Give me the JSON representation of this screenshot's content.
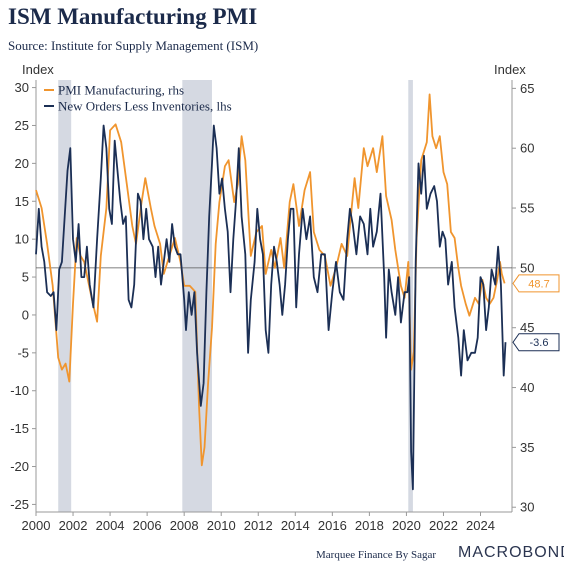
{
  "title": "ISM Manufacturing PMI",
  "subtitle": "Source: Institute for Supply Management (ISM)",
  "footer": {
    "credit": "Marquee Finance By Sagar",
    "brand": "MACROBOND"
  },
  "chart_data": {
    "type": "line",
    "left_axis": {
      "unit": "Index",
      "range": [
        -26,
        31
      ],
      "ticks": [
        "30",
        "25",
        "20",
        "15",
        "10",
        "5",
        "0",
        "-5",
        "-10",
        "-15",
        "-20",
        "-25"
      ]
    },
    "right_axis": {
      "unit": "Index",
      "range": [
        29.6,
        65.7
      ],
      "ticks": [
        "65",
        "60",
        "55",
        "50",
        "45",
        "40",
        "35",
        "30"
      ]
    },
    "x_axis": {
      "range": [
        2000,
        2025.7
      ],
      "ticks": [
        "2000",
        "2002",
        "2004",
        "2006",
        "2008",
        "2010",
        "2012",
        "2014",
        "2016",
        "2018",
        "2020",
        "2022",
        "2024"
      ]
    },
    "recessions": [
      [
        2001.2,
        2001.9
      ],
      [
        2007.9,
        2009.5
      ],
      [
        2020.1,
        2020.35
      ]
    ],
    "reference_line": {
      "axis": "right",
      "value": 50
    },
    "grid": false,
    "legend_placement": "top-left",
    "series": [
      {
        "name": "PMI Manufacturing, rhs",
        "axis": "right",
        "color": "#f0952e",
        "points": [
          [
            2000.0,
            56.5
          ],
          [
            2000.3,
            55
          ],
          [
            2000.6,
            52
          ],
          [
            2000.9,
            48.5
          ],
          [
            2001.2,
            42.5
          ],
          [
            2001.4,
            41.5
          ],
          [
            2001.6,
            42
          ],
          [
            2001.8,
            40.5
          ],
          [
            2002.0,
            47
          ],
          [
            2002.2,
            52.5
          ],
          [
            2002.4,
            51
          ],
          [
            2002.6,
            50.5
          ],
          [
            2002.8,
            49
          ],
          [
            2003.0,
            47.5
          ],
          [
            2003.3,
            45.5
          ],
          [
            2003.5,
            51
          ],
          [
            2003.8,
            55
          ],
          [
            2004.0,
            61.5
          ],
          [
            2004.3,
            62
          ],
          [
            2004.6,
            60.5
          ],
          [
            2004.9,
            57
          ],
          [
            2005.2,
            53.5
          ],
          [
            2005.4,
            52
          ],
          [
            2005.7,
            55.5
          ],
          [
            2005.9,
            57.5
          ],
          [
            2006.2,
            55
          ],
          [
            2006.4,
            53.5
          ],
          [
            2006.7,
            52
          ],
          [
            2006.9,
            49.5
          ],
          [
            2007.2,
            51
          ],
          [
            2007.5,
            52.5
          ],
          [
            2007.8,
            50.5
          ],
          [
            2008.0,
            48.5
          ],
          [
            2008.3,
            48.5
          ],
          [
            2008.6,
            48
          ],
          [
            2008.8,
            38.5
          ],
          [
            2008.95,
            33.5
          ],
          [
            2009.1,
            35
          ],
          [
            2009.3,
            40.5
          ],
          [
            2009.5,
            45
          ],
          [
            2009.7,
            52
          ],
          [
            2009.9,
            55.5
          ],
          [
            2010.2,
            58.5
          ],
          [
            2010.4,
            59
          ],
          [
            2010.7,
            55.5
          ],
          [
            2010.9,
            57
          ],
          [
            2011.1,
            61
          ],
          [
            2011.3,
            59
          ],
          [
            2011.6,
            51
          ],
          [
            2011.9,
            53
          ],
          [
            2012.2,
            53.5
          ],
          [
            2012.4,
            49.5
          ],
          [
            2012.7,
            51.5
          ],
          [
            2012.9,
            50
          ],
          [
            2013.2,
            52.5
          ],
          [
            2013.4,
            50
          ],
          [
            2013.7,
            55.5
          ],
          [
            2013.9,
            57
          ],
          [
            2014.2,
            53.5
          ],
          [
            2014.5,
            56.5
          ],
          [
            2014.8,
            58
          ],
          [
            2015.0,
            53
          ],
          [
            2015.3,
            51.5
          ],
          [
            2015.6,
            51
          ],
          [
            2015.9,
            48.5
          ],
          [
            2016.2,
            50
          ],
          [
            2016.5,
            52
          ],
          [
            2016.8,
            51
          ],
          [
            2016.95,
            53.5
          ],
          [
            2017.2,
            57.5
          ],
          [
            2017.4,
            55
          ],
          [
            2017.7,
            60
          ],
          [
            2017.9,
            58.5
          ],
          [
            2018.2,
            60
          ],
          [
            2018.4,
            58
          ],
          [
            2018.7,
            61
          ],
          [
            2018.9,
            56
          ],
          [
            2019.2,
            54
          ],
          [
            2019.4,
            51.5
          ],
          [
            2019.7,
            48.5
          ],
          [
            2019.9,
            47.5
          ],
          [
            2020.1,
            50.5
          ],
          [
            2020.25,
            41.5
          ],
          [
            2020.4,
            43
          ],
          [
            2020.55,
            52.5
          ],
          [
            2020.8,
            59
          ],
          [
            2021.1,
            60.5
          ],
          [
            2021.25,
            64.5
          ],
          [
            2021.4,
            61
          ],
          [
            2021.6,
            60
          ],
          [
            2021.8,
            61
          ],
          [
            2022.0,
            58
          ],
          [
            2022.2,
            57
          ],
          [
            2022.4,
            53
          ],
          [
            2022.6,
            52.5
          ],
          [
            2022.8,
            50
          ],
          [
            2022.95,
            48.5
          ],
          [
            2023.2,
            47
          ],
          [
            2023.4,
            46
          ],
          [
            2023.7,
            47.5
          ],
          [
            2023.9,
            47
          ],
          [
            2024.1,
            49
          ],
          [
            2024.3,
            47.5
          ],
          [
            2024.5,
            47
          ],
          [
            2024.7,
            47.5
          ],
          [
            2024.9,
            49
          ],
          [
            2025.05,
            50.5
          ],
          [
            2025.15,
            49.5
          ],
          [
            2025.3,
            48.7
          ]
        ]
      },
      {
        "name": "New Orders Less Inventories, lhs",
        "axis": "left",
        "color": "#1b2f55",
        "points": [
          [
            2000.0,
            8
          ],
          [
            2000.15,
            14
          ],
          [
            2000.3,
            9
          ],
          [
            2000.45,
            7
          ],
          [
            2000.6,
            3
          ],
          [
            2000.8,
            2.5
          ],
          [
            2000.95,
            3
          ],
          [
            2001.1,
            -2
          ],
          [
            2001.25,
            6
          ],
          [
            2001.4,
            7
          ],
          [
            2001.55,
            13
          ],
          [
            2001.7,
            19
          ],
          [
            2001.85,
            22
          ],
          [
            2002.0,
            10
          ],
          [
            2002.15,
            7
          ],
          [
            2002.3,
            12
          ],
          [
            2002.45,
            5
          ],
          [
            2002.6,
            5
          ],
          [
            2002.75,
            9
          ],
          [
            2002.9,
            4
          ],
          [
            2003.1,
            1
          ],
          [
            2003.3,
            10
          ],
          [
            2003.5,
            18
          ],
          [
            2003.65,
            25
          ],
          [
            2003.8,
            22
          ],
          [
            2003.95,
            14
          ],
          [
            2004.1,
            12
          ],
          [
            2004.25,
            23
          ],
          [
            2004.4,
            19
          ],
          [
            2004.55,
            15
          ],
          [
            2004.7,
            12
          ],
          [
            2004.85,
            13
          ],
          [
            2005.0,
            2
          ],
          [
            2005.15,
            1
          ],
          [
            2005.3,
            4
          ],
          [
            2005.5,
            16
          ],
          [
            2005.65,
            15
          ],
          [
            2005.8,
            10
          ],
          [
            2005.95,
            14
          ],
          [
            2006.1,
            10
          ],
          [
            2006.3,
            9
          ],
          [
            2006.45,
            5
          ],
          [
            2006.6,
            9
          ],
          [
            2006.75,
            4
          ],
          [
            2006.9,
            7
          ],
          [
            2007.05,
            10
          ],
          [
            2007.2,
            7
          ],
          [
            2007.35,
            12
          ],
          [
            2007.5,
            9
          ],
          [
            2007.65,
            8
          ],
          [
            2007.8,
            8
          ],
          [
            2008.0,
            2
          ],
          [
            2008.1,
            -2
          ],
          [
            2008.25,
            3
          ],
          [
            2008.4,
            0
          ],
          [
            2008.55,
            3
          ],
          [
            2008.7,
            -5
          ],
          [
            2008.9,
            -12
          ],
          [
            2009.05,
            -9
          ],
          [
            2009.2,
            3
          ],
          [
            2009.35,
            13
          ],
          [
            2009.5,
            20
          ],
          [
            2009.6,
            25
          ],
          [
            2009.75,
            22
          ],
          [
            2009.9,
            16
          ],
          [
            2010.05,
            18
          ],
          [
            2010.2,
            14
          ],
          [
            2010.35,
            11
          ],
          [
            2010.5,
            3
          ],
          [
            2010.65,
            10
          ],
          [
            2010.8,
            15
          ],
          [
            2010.95,
            22
          ],
          [
            2011.1,
            13
          ],
          [
            2011.3,
            8
          ],
          [
            2011.45,
            -5
          ],
          [
            2011.6,
            2
          ],
          [
            2011.8,
            7
          ],
          [
            2011.95,
            14
          ],
          [
            2012.1,
            10
          ],
          [
            2012.25,
            8
          ],
          [
            2012.4,
            -2
          ],
          [
            2012.55,
            -5
          ],
          [
            2012.7,
            4
          ],
          [
            2012.85,
            9
          ],
          [
            2013.0,
            7
          ],
          [
            2013.15,
            4
          ],
          [
            2013.3,
            0
          ],
          [
            2013.45,
            4
          ],
          [
            2013.6,
            10
          ],
          [
            2013.75,
            14
          ],
          [
            2013.9,
            14
          ],
          [
            2014.05,
            1
          ],
          [
            2014.2,
            8
          ],
          [
            2014.4,
            14
          ],
          [
            2014.6,
            10
          ],
          [
            2014.8,
            13
          ],
          [
            2015.0,
            5
          ],
          [
            2015.2,
            3
          ],
          [
            2015.4,
            8
          ],
          [
            2015.6,
            8
          ],
          [
            2015.8,
            -2
          ],
          [
            2016.0,
            3
          ],
          [
            2016.2,
            7
          ],
          [
            2016.4,
            3
          ],
          [
            2016.6,
            2
          ],
          [
            2016.8,
            10
          ],
          [
            2016.95,
            14
          ],
          [
            2017.1,
            12
          ],
          [
            2017.3,
            8
          ],
          [
            2017.5,
            13
          ],
          [
            2017.7,
            12
          ],
          [
            2017.9,
            8
          ],
          [
            2018.05,
            14
          ],
          [
            2018.2,
            9
          ],
          [
            2018.4,
            11
          ],
          [
            2018.6,
            16
          ],
          [
            2018.8,
            5
          ],
          [
            2018.9,
            -3
          ],
          [
            2019.05,
            6
          ],
          [
            2019.2,
            3
          ],
          [
            2019.4,
            0
          ],
          [
            2019.55,
            5
          ],
          [
            2019.7,
            -1
          ],
          [
            2019.9,
            3
          ],
          [
            2020.05,
            3
          ],
          [
            2020.15,
            5
          ],
          [
            2020.25,
            -18
          ],
          [
            2020.35,
            -23
          ],
          [
            2020.5,
            7
          ],
          [
            2020.65,
            20
          ],
          [
            2020.8,
            16
          ],
          [
            2020.95,
            21
          ],
          [
            2021.1,
            14
          ],
          [
            2021.3,
            16
          ],
          [
            2021.5,
            17
          ],
          [
            2021.65,
            15
          ],
          [
            2021.8,
            9
          ],
          [
            2021.95,
            11
          ],
          [
            2022.1,
            10
          ],
          [
            2022.25,
            4
          ],
          [
            2022.45,
            7
          ],
          [
            2022.6,
            1
          ],
          [
            2022.8,
            -3
          ],
          [
            2022.95,
            -8
          ],
          [
            2023.1,
            -2
          ],
          [
            2023.3,
            -6
          ],
          [
            2023.5,
            -5
          ],
          [
            2023.7,
            -5
          ],
          [
            2023.85,
            -3
          ],
          [
            2024.0,
            5
          ],
          [
            2024.15,
            4
          ],
          [
            2024.3,
            -2
          ],
          [
            2024.45,
            1
          ],
          [
            2024.6,
            6
          ],
          [
            2024.8,
            4
          ],
          [
            2024.95,
            9
          ],
          [
            2025.1,
            4
          ],
          [
            2025.25,
            -8
          ],
          [
            2025.35,
            -3.6
          ]
        ]
      }
    ],
    "callouts": [
      {
        "series": 0,
        "label": "48.7",
        "value": 48.7,
        "color": "#f0952e"
      },
      {
        "series": 1,
        "label": "-3.6",
        "value": -3.6,
        "color": "#1b2f55"
      }
    ]
  }
}
